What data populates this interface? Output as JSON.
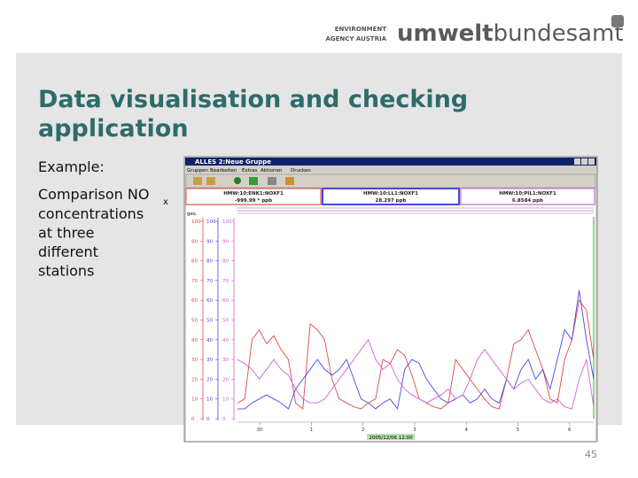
{
  "logo": {
    "line1": "ENVIRONMENT",
    "line2": "AGENCY AUSTRIA",
    "brand_bold": "umwelt",
    "brand_light": "bundesamt"
  },
  "slide": {
    "title_lines": [
      "Data visualisation and checking",
      "application"
    ],
    "example": "Example:",
    "comparison": "Comparison NO",
    "subscript": "x",
    "body_lines": [
      "concentrations",
      "at three",
      "different",
      "stations"
    ],
    "page_number": 45
  },
  "app": {
    "window_title": "ALLES 2:Neue Gruppe",
    "menu": [
      "Gruppen",
      "Bearbeiten",
      "Extras",
      "Aktionen",
      "Drucken"
    ],
    "headers": [
      {
        "name": "HMW:10:ENK1:NOXF1",
        "value": "-999.99 * ppb"
      },
      {
        "name": "HMW:10:LL1:NOXF1",
        "value": "28.297  ppb"
      },
      {
        "name": "HMW:10:PIL1:NOXF1",
        "value": "6.8584  ppb"
      }
    ],
    "axis_label": "ges.",
    "date_label": "2005/12/06 12:00",
    "chart": {
      "type": "line",
      "categories": [
        "30",
        "1",
        "2",
        "3",
        "4",
        "5",
        "6"
      ],
      "ylim": [
        0,
        100
      ],
      "yticks": [
        100,
        90,
        80,
        70,
        60,
        50,
        40,
        30,
        20,
        10,
        0
      ],
      "series": [
        {
          "color": "#e04848",
          "values": [
            8,
            10,
            40,
            45,
            38,
            42,
            35,
            30,
            8,
            5,
            48,
            45,
            40,
            20,
            10,
            8,
            6,
            5,
            8,
            10,
            30,
            28,
            35,
            32,
            22,
            10,
            8,
            6,
            5,
            8,
            30,
            25,
            20,
            15,
            10,
            6,
            5,
            20,
            38,
            40,
            45,
            35,
            25,
            10,
            8,
            30,
            40,
            60,
            55,
            30
          ]
        },
        {
          "color": "#4848e0",
          "values": [
            5,
            5,
            8,
            10,
            12,
            10,
            8,
            5,
            15,
            20,
            25,
            30,
            25,
            22,
            25,
            30,
            20,
            10,
            8,
            5,
            8,
            10,
            5,
            25,
            30,
            28,
            20,
            15,
            10,
            8,
            10,
            12,
            8,
            10,
            15,
            10,
            8,
            20,
            15,
            25,
            30,
            20,
            25,
            15,
            30,
            45,
            40,
            65,
            40,
            20
          ]
        },
        {
          "color": "#d060d0",
          "values": [
            30,
            28,
            25,
            20,
            25,
            30,
            25,
            22,
            15,
            10,
            8,
            8,
            10,
            15,
            20,
            25,
            30,
            35,
            40,
            30,
            25,
            28,
            20,
            15,
            12,
            10,
            8,
            10,
            12,
            15,
            10,
            12,
            20,
            30,
            35,
            30,
            25,
            20,
            15,
            18,
            20,
            15,
            10,
            8,
            10,
            6,
            5,
            20,
            30,
            6
          ]
        }
      ]
    }
  }
}
